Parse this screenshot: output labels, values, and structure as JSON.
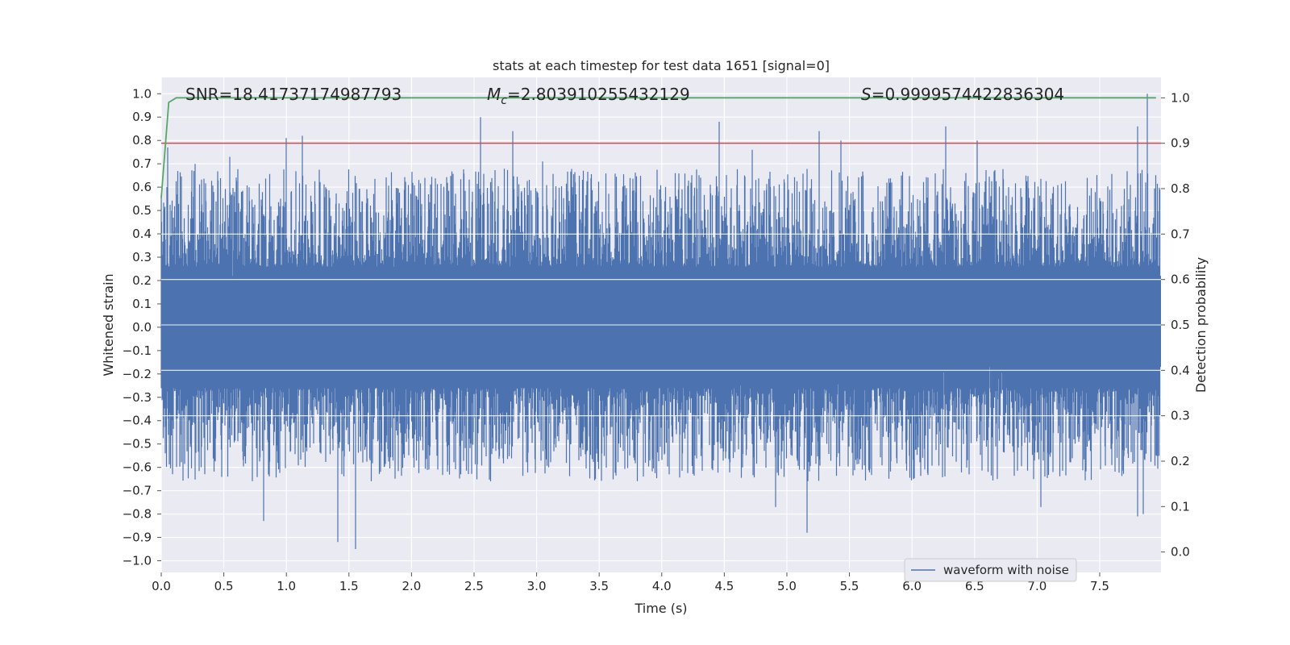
{
  "chart_data": {
    "type": "line",
    "title": "stats at each timestep for test data 1651 [signal=0]",
    "xlabel": "Time (s)",
    "ylabel_left": "Whitened strain",
    "ylabel_right": "Detection probability",
    "xlim": [
      0.0,
      7.99
    ],
    "ylim_left": [
      -1.05,
      1.07
    ],
    "ylim_right": [
      -0.045,
      1.045
    ],
    "x_ticks": [
      "0.0",
      "0.5",
      "1.0",
      "1.5",
      "2.0",
      "2.5",
      "3.0",
      "3.5",
      "4.0",
      "4.5",
      "5.0",
      "5.5",
      "6.0",
      "6.5",
      "7.0",
      "7.5"
    ],
    "y_ticks_left": [
      "1.0",
      "0.9",
      "0.8",
      "0.7",
      "0.6",
      "0.5",
      "0.4",
      "0.3",
      "0.2",
      "0.1",
      "0.0",
      "-0.1",
      "-0.2",
      "-0.3",
      "-0.4",
      "-0.5",
      "-0.6",
      "-0.7",
      "-0.8",
      "-0.9",
      "-1.0"
    ],
    "y_ticks_right": [
      "1.0",
      "0.9",
      "0.8",
      "0.7",
      "0.6",
      "0.5",
      "0.4",
      "0.3",
      "0.2",
      "0.1",
      "0.0"
    ],
    "annotations": {
      "snr": "SNR=18.41737174987793",
      "mc_symbol": "M",
      "mc_sub": "c",
      "mc_value": "=2.803910255432129",
      "s_symbol": "S",
      "s_value": "=0.9999574422836304"
    },
    "legend": {
      "position": "lower-right",
      "entries": [
        "waveform with noise"
      ]
    },
    "threshold": {
      "axis": "right",
      "value": 0.9,
      "color": "#c44e52"
    },
    "series": [
      {
        "name": "waveform with noise",
        "axis": "left",
        "color": "#4c72b0",
        "kind": "dense-noise",
        "peaks_positive": [
          {
            "x": 0.05,
            "y": 0.77
          },
          {
            "x": 0.27,
            "y": 0.7
          },
          {
            "x": 0.55,
            "y": 0.73
          },
          {
            "x": 1.0,
            "y": 0.81
          },
          {
            "x": 1.13,
            "y": 0.82
          },
          {
            "x": 2.55,
            "y": 0.9
          },
          {
            "x": 2.81,
            "y": 0.84
          },
          {
            "x": 3.05,
            "y": 0.71
          },
          {
            "x": 4.46,
            "y": 0.88
          },
          {
            "x": 4.72,
            "y": 0.76
          },
          {
            "x": 5.26,
            "y": 0.84
          },
          {
            "x": 5.43,
            "y": 0.8
          },
          {
            "x": 6.27,
            "y": 0.86
          },
          {
            "x": 6.52,
            "y": 0.8
          },
          {
            "x": 7.8,
            "y": 0.86
          },
          {
            "x": 7.88,
            "y": 1.0
          }
        ],
        "peaks_negative": [
          {
            "x": 0.82,
            "y": -0.83
          },
          {
            "x": 1.41,
            "y": -0.92
          },
          {
            "x": 1.55,
            "y": -0.95
          },
          {
            "x": 4.91,
            "y": -0.77
          },
          {
            "x": 5.16,
            "y": -0.88
          },
          {
            "x": 7.03,
            "y": -0.77
          },
          {
            "x": 7.8,
            "y": -0.81
          },
          {
            "x": 7.85,
            "y": -0.8
          }
        ]
      },
      {
        "name": "",
        "axis": "right",
        "color": "#55a868",
        "x": [
          0.0,
          0.06,
          0.12,
          7.95
        ],
        "y": [
          0.78,
          0.99,
          1.0,
          1.0
        ]
      }
    ]
  }
}
